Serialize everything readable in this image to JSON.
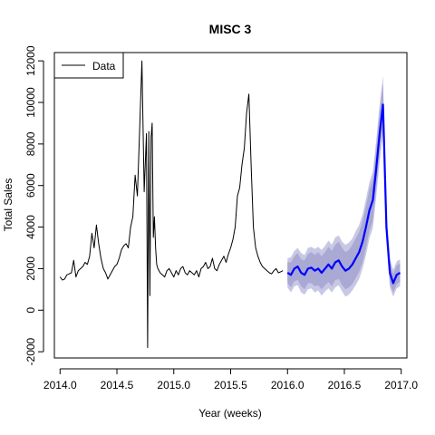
{
  "chart_data": {
    "type": "line",
    "title": "MISC 3",
    "xlabel": "Year (weeks)",
    "ylabel": "Total Sales",
    "xlim": [
      2013.95,
      2017.05
    ],
    "ylim": [
      -2300,
      12400
    ],
    "x_ticks": [
      2014.0,
      2014.5,
      2015.0,
      2015.5,
      2016.0,
      2016.5,
      2017.0
    ],
    "x_tick_labels": [
      "2014.0",
      "2014.5",
      "2015.0",
      "2015.5",
      "2016.0",
      "2016.5",
      "2017.0"
    ],
    "y_ticks": [
      -2000,
      0,
      2000,
      4000,
      6000,
      8000,
      10000,
      12000
    ],
    "y_tick_labels": [
      "-2000",
      "0",
      "2000",
      "4000",
      "6000",
      "8000",
      "10000",
      "12000"
    ],
    "legend": {
      "entries": [
        "Data"
      ],
      "position": "top-left"
    },
    "colors": {
      "data": "#000000",
      "forecast": "#0000ff",
      "band_outer": "#c8c8e6",
      "band_inner": "#a9a9d3"
    },
    "series": [
      {
        "name": "Data",
        "x": [
          2014.0,
          2014.02,
          2014.04,
          2014.06,
          2014.08,
          2014.1,
          2014.12,
          2014.14,
          2014.16,
          2014.18,
          2014.2,
          2014.22,
          2014.24,
          2014.26,
          2014.28,
          2014.3,
          2014.32,
          2014.34,
          2014.36,
          2014.38,
          2014.4,
          2014.42,
          2014.44,
          2014.46,
          2014.48,
          2014.5,
          2014.52,
          2014.54,
          2014.56,
          2014.58,
          2014.6,
          2014.62,
          2014.64,
          2014.66,
          2014.68,
          2014.7,
          2014.72,
          2014.74,
          2014.76,
          2014.77,
          2014.78,
          2014.79,
          2014.8,
          2014.81,
          2014.82,
          2014.83,
          2014.84,
          2014.85,
          2014.86,
          2014.88,
          2014.9,
          2014.92,
          2014.94,
          2014.96,
          2014.98,
          2015.0,
          2015.02,
          2015.04,
          2015.06,
          2015.08,
          2015.1,
          2015.12,
          2015.14,
          2015.16,
          2015.18,
          2015.2,
          2015.22,
          2015.24,
          2015.26,
          2015.28,
          2015.3,
          2015.32,
          2015.34,
          2015.36,
          2015.38,
          2015.4,
          2015.42,
          2015.44,
          2015.46,
          2015.48,
          2015.5,
          2015.52,
          2015.54,
          2015.56,
          2015.58,
          2015.6,
          2015.62,
          2015.64,
          2015.66,
          2015.68,
          2015.7,
          2015.72,
          2015.74,
          2015.76,
          2015.78,
          2015.8,
          2015.82,
          2015.84,
          2015.86,
          2015.88,
          2015.9,
          2015.92,
          2015.94,
          2015.96
        ],
        "values": [
          1600,
          1450,
          1500,
          1700,
          1750,
          1800,
          2400,
          1600,
          1900,
          2000,
          2100,
          2300,
          2200,
          2600,
          3700,
          3000,
          4100,
          3200,
          2500,
          2000,
          1800,
          1500,
          1700,
          1900,
          2100,
          2200,
          2500,
          2900,
          3100,
          3200,
          3000,
          4000,
          4500,
          6500,
          5500,
          8700,
          12000,
          5700,
          8500,
          -1800,
          8600,
          700,
          8300,
          9000,
          3500,
          4500,
          3000,
          2200,
          2000,
          1800,
          1700,
          1600,
          1900,
          2000,
          1800,
          1600,
          1900,
          1700,
          2000,
          2100,
          1800,
          1700,
          1900,
          1800,
          1700,
          1900,
          1600,
          2000,
          2100,
          2300,
          2000,
          2100,
          2500,
          2000,
          1900,
          2200,
          2400,
          2600,
          2300,
          2700,
          3000,
          3400,
          4000,
          5500,
          5900,
          7000,
          7800,
          9500,
          10400,
          7000,
          4000,
          3000,
          2600,
          2300,
          2100,
          2000,
          1900,
          1800,
          1750,
          1900,
          2000,
          1800,
          1850,
          1900
        ]
      },
      {
        "name": "",
        "x": [
          2016.0,
          2016.03,
          2016.06,
          2016.09,
          2016.12,
          2016.15,
          2016.18,
          2016.21,
          2016.24,
          2016.27,
          2016.3,
          2016.33,
          2016.36,
          2016.39,
          2016.42,
          2016.45,
          2016.48,
          2016.51,
          2016.54,
          2016.57,
          2016.6,
          2016.63,
          2016.66,
          2016.69,
          2016.72,
          2016.75,
          2016.78,
          2016.81,
          2016.84,
          2016.87,
          2016.9,
          2016.93,
          2016.96,
          2016.99
        ],
        "values": [
          1800,
          1700,
          2000,
          2100,
          1800,
          1700,
          2000,
          2050,
          1900,
          2000,
          1800,
          2000,
          2200,
          2000,
          2300,
          2400,
          2100,
          1900,
          2000,
          2200,
          2500,
          2800,
          3300,
          4000,
          4800,
          5300,
          6800,
          8500,
          9900,
          4000,
          1800,
          1300,
          1700,
          1800
        ],
        "band_inner": [
          500,
          600,
          600,
          650,
          650,
          700,
          700,
          750,
          750,
          800,
          800,
          800,
          850,
          850,
          850,
          900,
          900,
          900,
          900,
          950,
          950,
          950,
          1000,
          1000,
          1000,
          1000,
          1000,
          1000,
          1000,
          500,
          500,
          450,
          450,
          450
        ],
        "band_outer": [
          700,
          850,
          850,
          900,
          950,
          950,
          1000,
          1000,
          1050,
          1050,
          1100,
          1100,
          1150,
          1150,
          1200,
          1200,
          1200,
          1250,
          1250,
          1250,
          1300,
          1300,
          1300,
          1350,
          1350,
          1350,
          1350,
          1400,
          1400,
          700,
          700,
          650,
          650,
          650
        ]
      }
    ]
  }
}
